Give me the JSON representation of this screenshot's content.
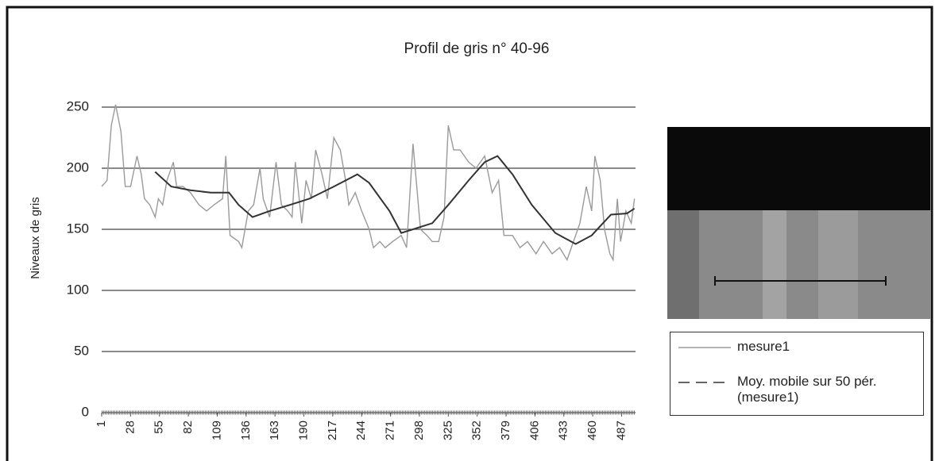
{
  "chart_data": {
    "type": "line",
    "title": "Profil de gris n° 40-96",
    "y_label": "Niveaux de gris",
    "xlim": [
      1,
      500
    ],
    "xticks": [
      1,
      28,
      55,
      82,
      109,
      136,
      163,
      190,
      217,
      244,
      271,
      298,
      325,
      352,
      379,
      406,
      433,
      460,
      487
    ],
    "ylim": [
      0,
      250
    ],
    "yticks": [
      0,
      50,
      100,
      150,
      200,
      250
    ],
    "grid": true,
    "series": [
      {
        "name": "mesure1",
        "color": "#9a9a9a",
        "dash": false,
        "x": [
          1,
          6,
          10,
          14,
          19,
          23,
          28,
          34,
          38,
          41,
          46,
          51,
          54,
          58,
          62,
          68,
          71,
          77,
          84,
          92,
          99,
          106,
          114,
          117,
          121,
          129,
          132,
          138,
          143,
          149,
          152,
          158,
          164,
          169,
          175,
          179,
          182,
          188,
          192,
          197,
          201,
          207,
          212,
          218,
          224,
          229,
          232,
          238,
          244,
          251,
          255,
          261,
          266,
          273,
          281,
          286,
          292,
          296,
          299,
          305,
          310,
          316,
          321,
          325,
          330,
          336,
          344,
          351,
          359,
          366,
          372,
          377,
          385,
          392,
          399,
          407,
          414,
          422,
          429,
          436,
          442,
          448,
          454,
          459,
          462,
          467,
          471,
          476,
          479,
          483,
          486,
          491,
          496,
          499
        ],
        "values": [
          185,
          190,
          235,
          252,
          230,
          185,
          185,
          210,
          195,
          175,
          170,
          160,
          175,
          170,
          190,
          205,
          185,
          185,
          180,
          170,
          165,
          170,
          175,
          210,
          145,
          140,
          135,
          165,
          170,
          200,
          175,
          160,
          205,
          170,
          165,
          160,
          205,
          155,
          190,
          175,
          215,
          195,
          175,
          225,
          215,
          190,
          170,
          180,
          165,
          150,
          135,
          140,
          135,
          140,
          145,
          135,
          220,
          180,
          150,
          145,
          140,
          140,
          160,
          235,
          215,
          215,
          205,
          200,
          210,
          180,
          190,
          145,
          145,
          135,
          140,
          130,
          140,
          130,
          135,
          125,
          140,
          155,
          185,
          165,
          210,
          190,
          150,
          130,
          125,
          175,
          140,
          165,
          155,
          175
        ]
      },
      {
        "name": "Moy. mobile sur 50 pér. (mesure1)",
        "color": "#333333",
        "dash": true,
        "x": [
          51,
          66,
          84,
          103,
          120,
          129,
          142,
          158,
          177,
          195,
          218,
          240,
          251,
          270,
          281,
          292,
          310,
          325,
          344,
          359,
          371,
          385,
          403,
          425,
          444,
          459,
          477,
          492,
          499
        ],
        "values": [
          197,
          185,
          182,
          180,
          180,
          170,
          160,
          165,
          170,
          175,
          185,
          195,
          188,
          165,
          147,
          150,
          155,
          170,
          190,
          205,
          210,
          195,
          170,
          147,
          138,
          145,
          162,
          163,
          167
        ]
      }
    ]
  }
}
